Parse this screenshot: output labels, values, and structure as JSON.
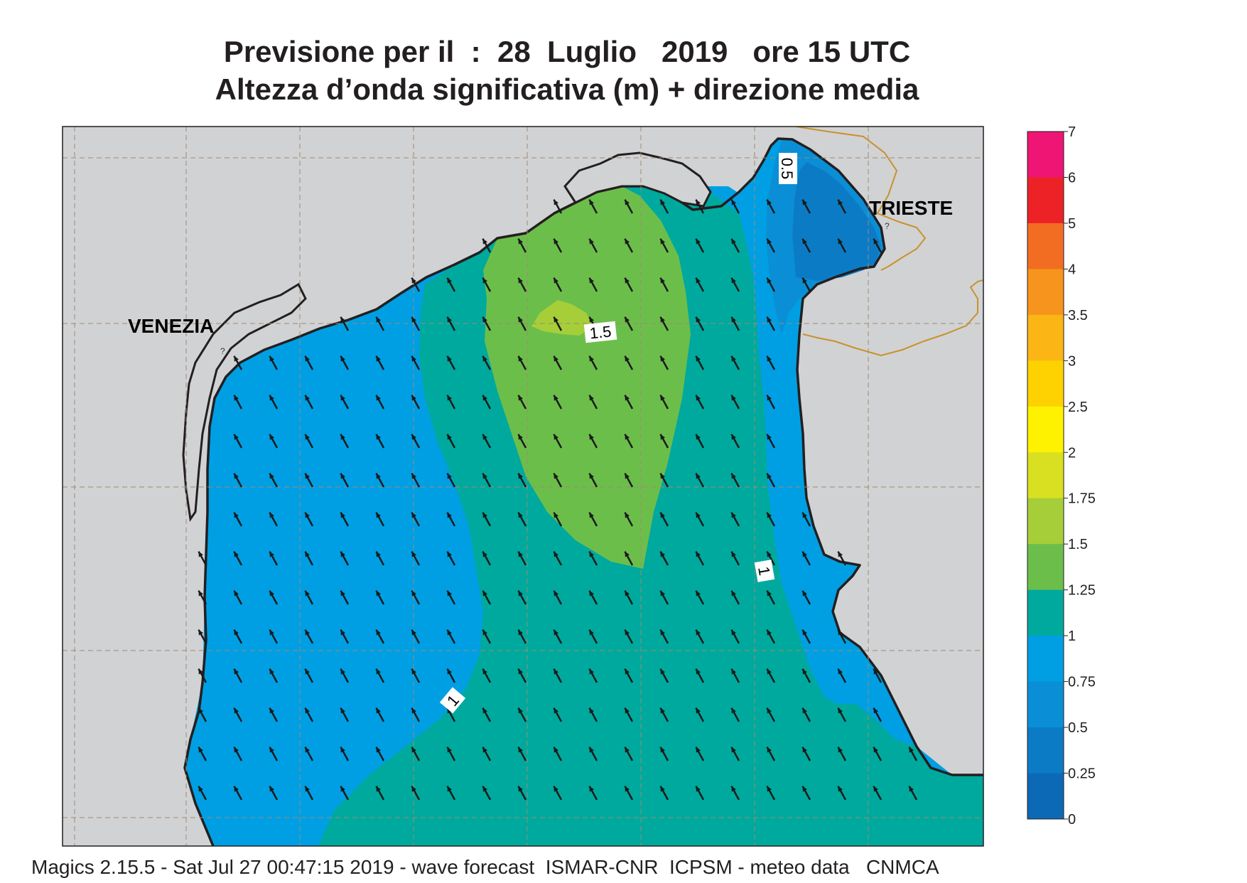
{
  "title": {
    "line1": "Previsione per il  :  28  Luglio   2019   ore 15 UTC",
    "line2": "Altezza d’onda significativa (m) + direzione media"
  },
  "places": {
    "venezia": "VENEZIA",
    "trieste": "TRIESTE",
    "marker": "?"
  },
  "contour_labels": [
    "0.5",
    "1.5",
    "1",
    "1"
  ],
  "legend": {
    "stops": [
      "7",
      "6",
      "5",
      "4",
      "3.5",
      "3",
      "2.5",
      "2",
      "1.75",
      "1.5",
      "1.25",
      "1",
      "0.75",
      "0.5",
      "0.25",
      "0"
    ],
    "colors": [
      "#ee1574",
      "#ec2227",
      "#f26d22",
      "#f7941d",
      "#fbb615",
      "#fdd200",
      "#fff200",
      "#d9e021",
      "#a6ce39",
      "#6cbe4b",
      "#00a99d",
      "#009fe3",
      "#0a8fd6",
      "#0c7bc6",
      "#0c69b6"
    ]
  },
  "colors": {
    "land": "#d1d2d4",
    "sea_0_75_1": "#009fe3",
    "sea_0_5_0_75": "#0a8fd6",
    "sea_0_25_0_5": "#0c7bc6",
    "sea_1_1_25": "#00a99d",
    "sea_1_25_1_5": "#6cbe4b",
    "sea_1_5_1_75": "#a6ce39",
    "coast": "#231f20",
    "border": "#c8922a",
    "grid": "#a08a70"
  },
  "arrow_direction": "NW",
  "footer": "Magics 2.15.5 - Sat Jul 27 00:47:15 2019 - wave forecast  ISMAR-CNR  ICPSM - meteo data   CNMCA"
}
